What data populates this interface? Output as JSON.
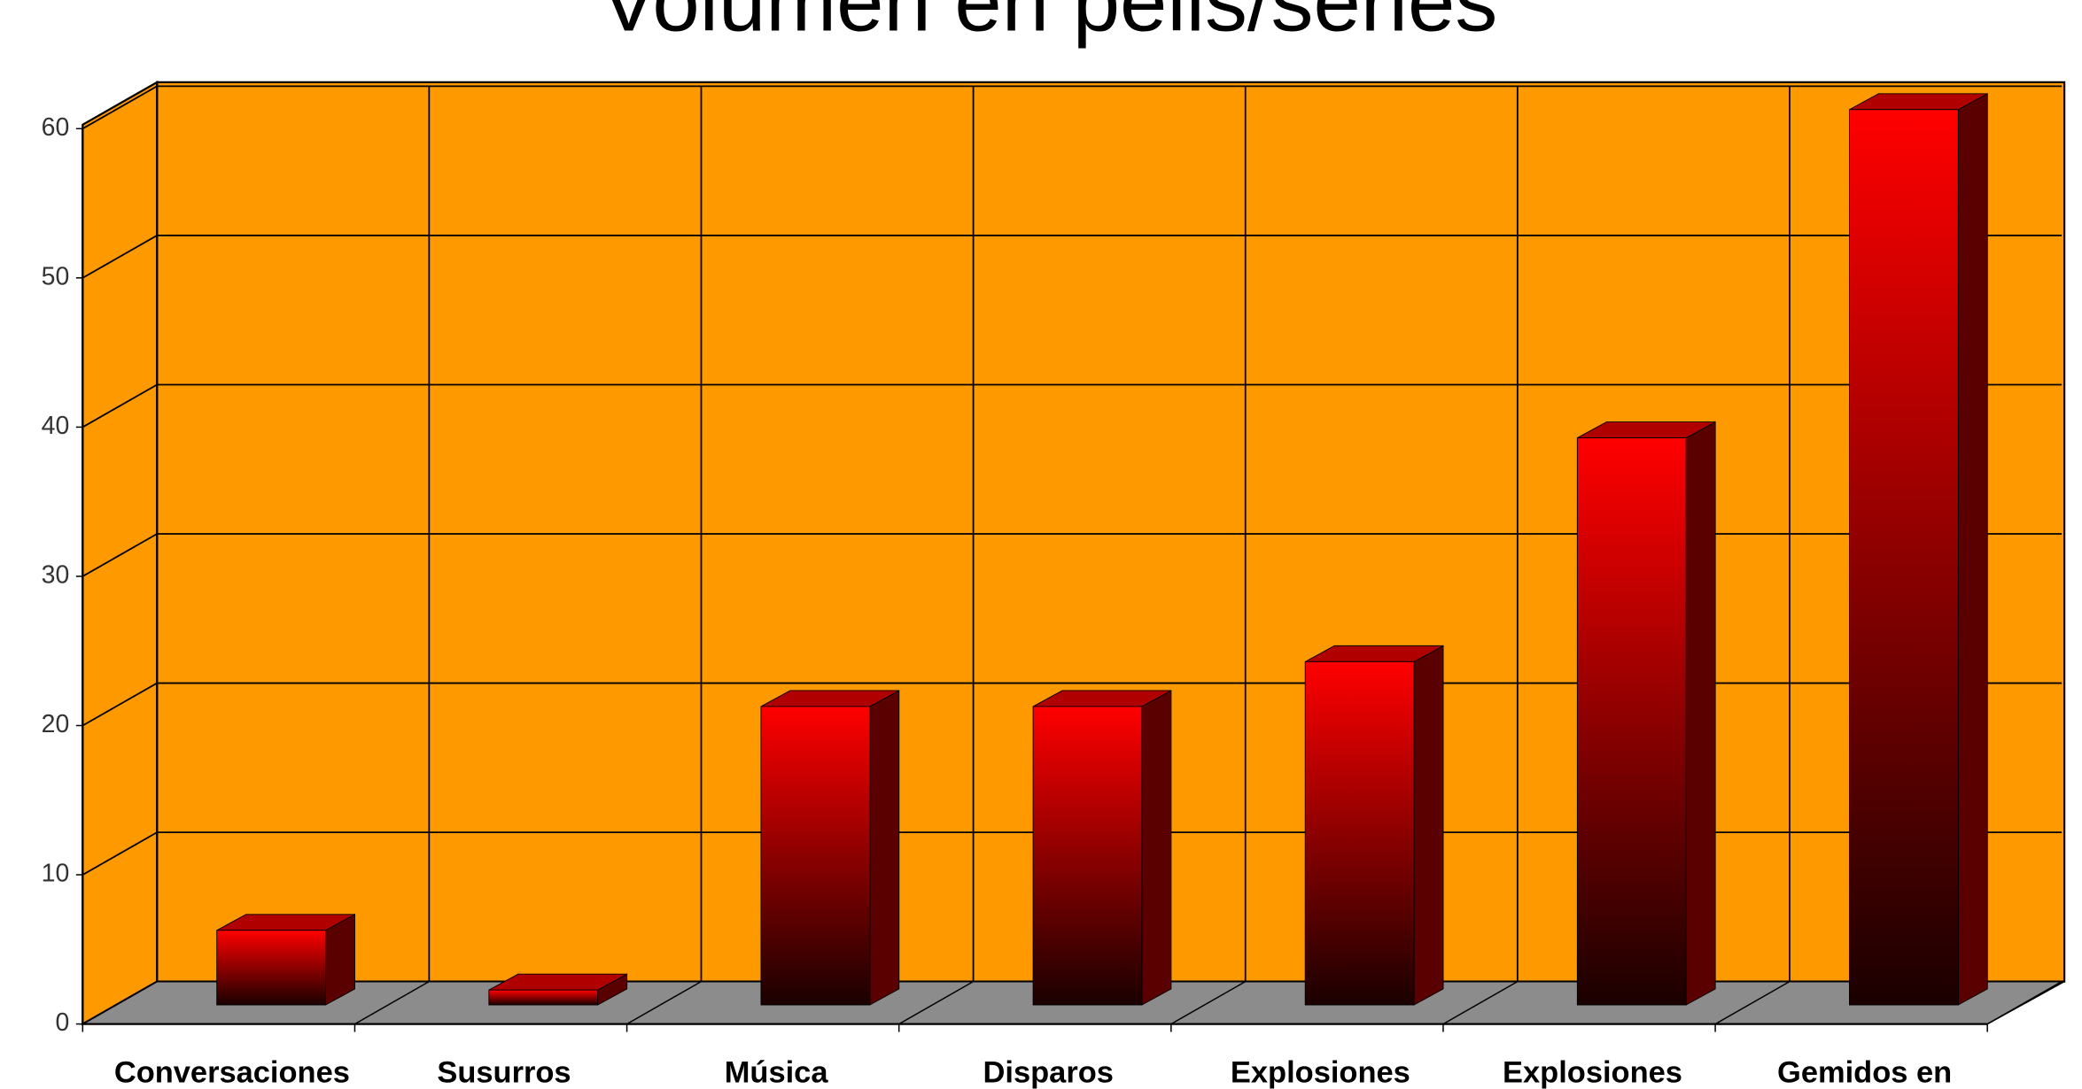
{
  "chart_data": {
    "type": "bar",
    "title": "Volumen en pelis/series",
    "categories": [
      "Conversaciones",
      "Susurros",
      "Música",
      "Disparos",
      "Explosiones",
      "Explosiones",
      "Gemidos en"
    ],
    "values": [
      5,
      1,
      20,
      20,
      23,
      38,
      60
    ],
    "color": "#ff0000",
    "ylim": [
      0,
      60
    ],
    "yticks": [
      0,
      10,
      20,
      30,
      40,
      50,
      60
    ],
    "grid": true
  }
}
